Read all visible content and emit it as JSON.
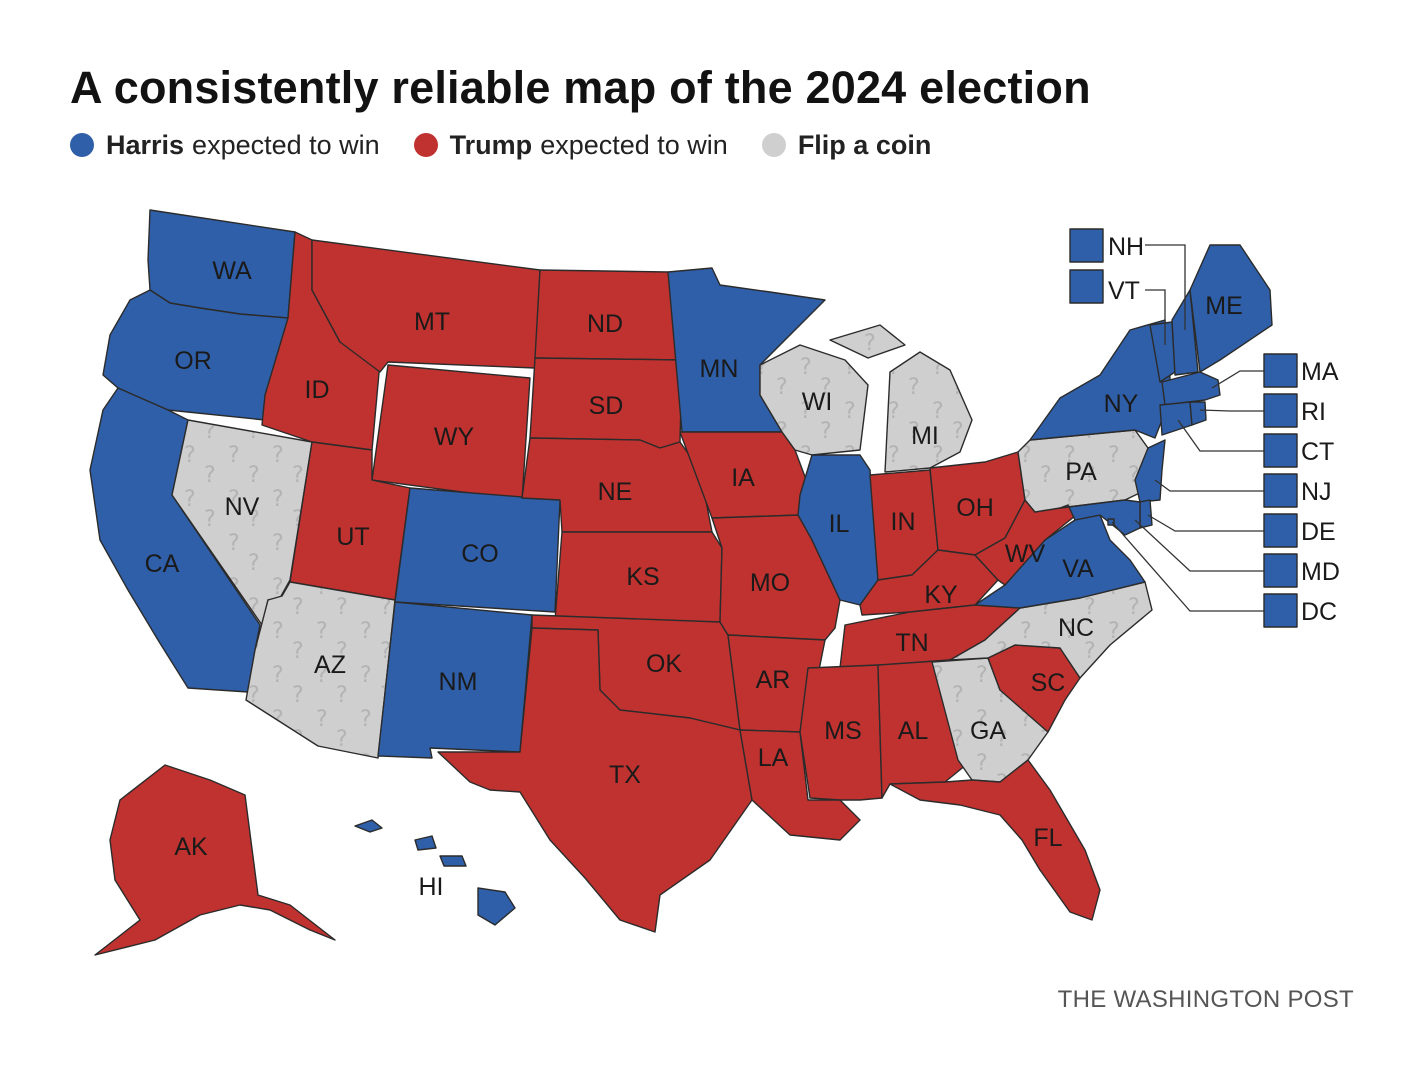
{
  "title": "A consistently reliable map of the 2024 election",
  "legend": [
    {
      "key": "harris",
      "bold": "Harris",
      "text": "expected to win",
      "color": "#2f5fa8"
    },
    {
      "key": "trump",
      "bold": "Trump",
      "text": "expected to win",
      "color": "#c0322f"
    },
    {
      "key": "coin",
      "bold": "Flip a coin",
      "text": "",
      "color": "#cfcfcf"
    }
  ],
  "colors": {
    "harris": "#2f5fa8",
    "trump": "#c0322f",
    "coin": "#cfcfcf",
    "pattern_mark": "#b3b3b3"
  },
  "states": {
    "WA": "harris",
    "OR": "harris",
    "CA": "harris",
    "NV": "coin",
    "ID": "trump",
    "MT": "trump",
    "WY": "trump",
    "UT": "trump",
    "AZ": "coin",
    "CO": "harris",
    "NM": "harris",
    "ND": "trump",
    "SD": "trump",
    "NE": "trump",
    "KS": "trump",
    "OK": "trump",
    "TX": "trump",
    "MN": "harris",
    "IA": "trump",
    "MO": "trump",
    "AR": "trump",
    "LA": "trump",
    "WI": "coin",
    "IL": "harris",
    "MI": "coin",
    "IN": "trump",
    "OH": "trump",
    "KY": "trump",
    "TN": "trump",
    "MS": "trump",
    "AL": "trump",
    "GA": "coin",
    "FL": "trump",
    "SC": "trump",
    "NC": "coin",
    "VA": "harris",
    "WV": "trump",
    "PA": "coin",
    "NY": "harris",
    "ME": "harris",
    "AK": "trump",
    "HI": "harris",
    "NH": "harris",
    "VT": "harris",
    "MA": "harris",
    "RI": "harris",
    "CT": "harris",
    "NJ": "harris",
    "DE": "harris",
    "MD": "harris",
    "DC": "harris"
  },
  "labels": {
    "WA": "WA",
    "OR": "OR",
    "CA": "CA",
    "NV": "NV",
    "ID": "ID",
    "MT": "MT",
    "WY": "WY",
    "UT": "UT",
    "AZ": "AZ",
    "CO": "CO",
    "NM": "NM",
    "ND": "ND",
    "SD": "SD",
    "NE": "NE",
    "KS": "KS",
    "OK": "OK",
    "TX": "TX",
    "MN": "MN",
    "IA": "IA",
    "MO": "MO",
    "AR": "AR",
    "LA": "LA",
    "WI": "WI",
    "IL": "IL",
    "MI": "MI",
    "IN": "IN",
    "OH": "OH",
    "KY": "KY",
    "TN": "TN",
    "MS": "MS",
    "AL": "AL",
    "GA": "GA",
    "FL": "FL",
    "SC": "SC",
    "NC": "NC",
    "VA": "VA",
    "WV": "WV",
    "PA": "PA",
    "NY": "NY",
    "ME": "ME",
    "AK": "AK",
    "HI": "HI"
  },
  "small_states": [
    "NH",
    "VT",
    "MA",
    "RI",
    "CT",
    "NJ",
    "DE",
    "MD",
    "DC"
  ],
  "credit": "THE WASHINGTON POST"
}
